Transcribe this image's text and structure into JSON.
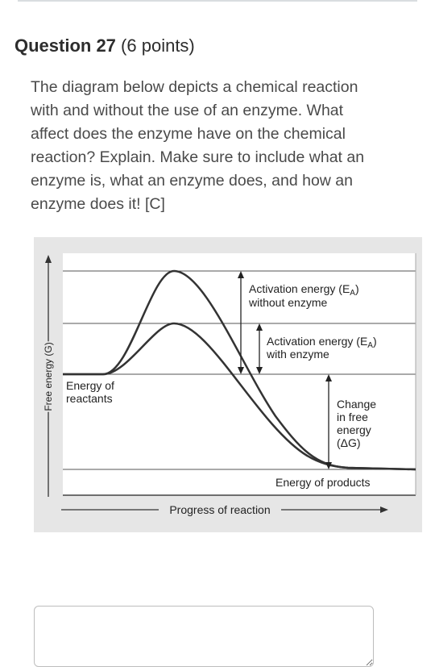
{
  "question": {
    "number_label": "Question 27",
    "points_label": "(6 points)",
    "lines": [
      "The diagram below depicts a chemical reaction",
      "with and without the use of an enzyme. What",
      "affect does the enzyme have on the chemical",
      "reaction? Explain. Make sure to include what an",
      "enzyme is, what an enzyme does, and how an",
      "enzyme does it! [C]"
    ]
  },
  "diagram": {
    "y_axis_label": "Free energy (G)",
    "x_axis_label": "Progress of reaction",
    "ea_without": {
      "line1_prefix": "Activation energy (E",
      "sub": "A",
      "line1_suffix": ")",
      "line2": "without enzyme"
    },
    "ea_with": {
      "line1_prefix": "Activation energy (E",
      "sub": "A",
      "line1_suffix": ")",
      "line2": "with enzyme"
    },
    "reactants": {
      "line1": "Energy of",
      "line2": "reactants"
    },
    "delta_g": {
      "line1": "Change",
      "line2": "in free",
      "line3": "energy",
      "line4": "(ΔG)"
    },
    "products": "Energy of products"
  },
  "answer_box": {
    "value": ""
  }
}
